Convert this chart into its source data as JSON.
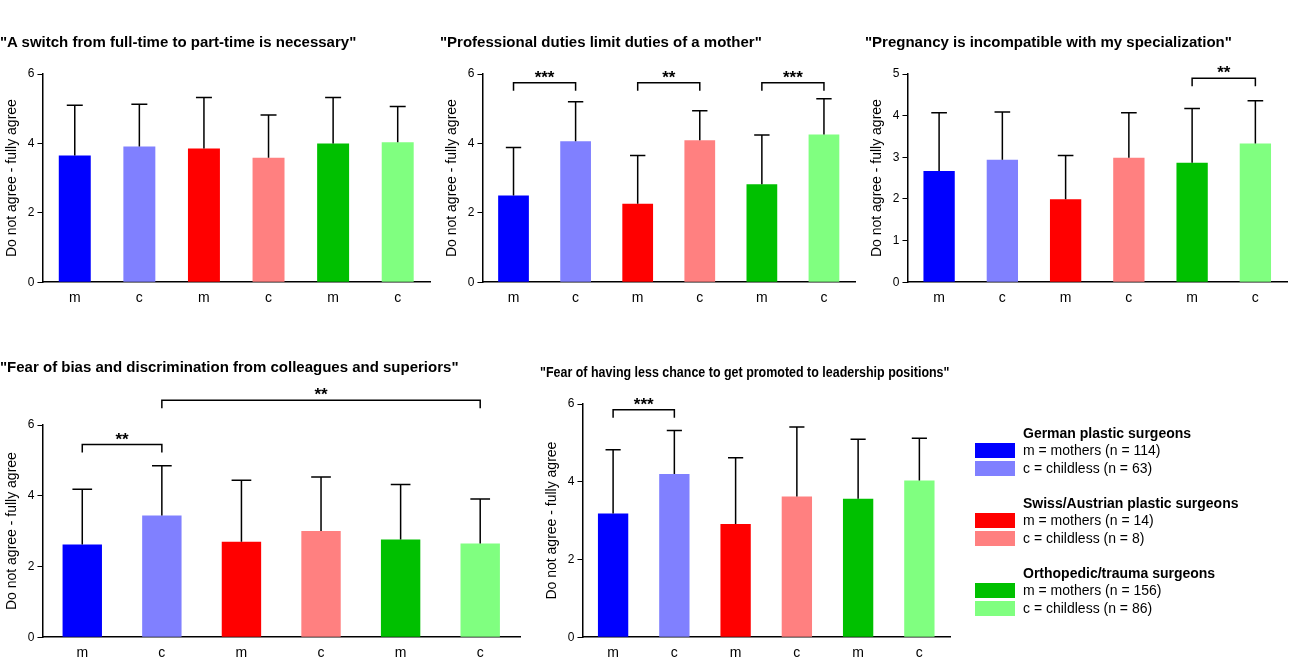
{
  "chart_data": [
    {
      "type": "bar",
      "title": "\"A switch from full-time to part-time is necessary\"",
      "ylabel": "Do not agree - fully agree",
      "categories": [
        "m",
        "c",
        "m",
        "c",
        "m",
        "c"
      ],
      "values": [
        3.65,
        3.91,
        3.85,
        3.59,
        4.0,
        4.03
      ],
      "colors": [
        "#0000ff",
        "#8080ff",
        "#ff0000",
        "#ff8080",
        "#00c000",
        "#80ff80"
      ],
      "errors": [
        [
          3.65,
          5.1
        ],
        [
          3.91,
          5.13
        ],
        [
          3.85,
          5.32
        ],
        [
          3.59,
          4.82
        ],
        [
          4.0,
          5.32
        ],
        [
          4.03,
          5.06
        ]
      ],
      "ylim": [
        0,
        6
      ],
      "yticks": [
        0,
        2,
        4,
        6
      ],
      "legend": false,
      "grid": false
    },
    {
      "type": "bar",
      "title": "\"Professional duties limit duties of a mother\"",
      "ylabel": "Do not agree - fully agree",
      "categories": [
        "m",
        "c",
        "m",
        "c",
        "m",
        "c"
      ],
      "values": [
        2.5,
        4.06,
        2.26,
        4.09,
        2.82,
        4.26
      ],
      "colors": [
        "#0000ff",
        "#8080ff",
        "#ff0000",
        "#ff8080",
        "#00c000",
        "#80ff80"
      ],
      "errors": [
        [
          2.5,
          3.88
        ],
        [
          4.06,
          5.2
        ],
        [
          2.26,
          3.65
        ],
        [
          4.09,
          4.94
        ],
        [
          2.82,
          4.24
        ],
        [
          4.26,
          5.29
        ]
      ],
      "ylim": [
        0,
        6
      ],
      "yticks": [
        0,
        2,
        4,
        6
      ],
      "legend": false,
      "grid": false,
      "annotations": [
        "***",
        "**",
        "***"
      ]
    },
    {
      "type": "bar",
      "title": "\"Pregnancy is incompatible with my specialization\"",
      "ylabel": "Do not agree - fully agree",
      "categories": [
        "m",
        "c",
        "m",
        "c",
        "m",
        "c"
      ],
      "values": [
        2.67,
        2.94,
        1.99,
        2.99,
        2.87,
        3.33
      ],
      "colors": [
        "#0000ff",
        "#8080ff",
        "#ff0000",
        "#ff8080",
        "#00c000",
        "#80ff80"
      ],
      "errors": [
        [
          2.67,
          4.07
        ],
        [
          2.94,
          4.09
        ],
        [
          1.99,
          3.04
        ],
        [
          2.99,
          4.07
        ],
        [
          2.87,
          4.17
        ],
        [
          3.33,
          4.36
        ]
      ],
      "ylim": [
        0,
        5
      ],
      "yticks": [
        0,
        1,
        2,
        3,
        4,
        5
      ],
      "legend": false,
      "grid": false,
      "annotations": [
        "**"
      ]
    },
    {
      "type": "bar",
      "title": "\"Fear of bias and discrimination from colleagues and superiors\"",
      "ylabel": "Do not agree - fully agree",
      "categories": [
        "m",
        "c",
        "m",
        "c",
        "m",
        "c"
      ],
      "values": [
        2.62,
        3.44,
        2.7,
        3.0,
        2.76,
        2.65
      ],
      "colors": [
        "#0000ff",
        "#8080ff",
        "#ff0000",
        "#ff8080",
        "#00c000",
        "#80ff80"
      ],
      "errors": [
        [
          2.62,
          4.18
        ],
        [
          3.44,
          4.85
        ],
        [
          2.7,
          4.44
        ],
        [
          3.0,
          4.53
        ],
        [
          2.76,
          4.32
        ],
        [
          2.65,
          3.91
        ]
      ],
      "ylim": [
        0,
        6
      ],
      "yticks": [
        0,
        2,
        4,
        6
      ],
      "legend": false,
      "grid": false,
      "annotations": [
        "**",
        "**"
      ]
    },
    {
      "type": "bar",
      "title": "\"Fear of having less chance to get promoted to leadership positions\"",
      "ylabel": "Do not agree - fully agree",
      "categories": [
        "m",
        "c",
        "m",
        "c",
        "m",
        "c"
      ],
      "values": [
        3.18,
        4.2,
        2.91,
        3.62,
        3.56,
        4.03
      ],
      "colors": [
        "#0000ff",
        "#8080ff",
        "#ff0000",
        "#ff8080",
        "#00c000",
        "#80ff80"
      ],
      "errors": [
        [
          3.18,
          4.82
        ],
        [
          4.2,
          5.32
        ],
        [
          2.91,
          4.62
        ],
        [
          3.62,
          5.41
        ],
        [
          3.56,
          5.09
        ],
        [
          4.03,
          5.12
        ]
      ],
      "ylim": [
        0,
        6
      ],
      "yticks": [
        0,
        2,
        4,
        6
      ],
      "legend": false,
      "grid": false,
      "annotations": [
        "***"
      ]
    },
    {
      "type": "other",
      "annotations": [
        "German plastic surgeons",
        "Swiss/Austrian plastic surgeons",
        "Orthopedic/trauma surgeons"
      ],
      "categories": [
        "m = mothers (n = 114)",
        "c = childless (n = 63)",
        "m = mothers (n = 14)",
        "c = childless (n = 8)",
        "m = mothers (n = 156)",
        "c = childless (n = 86)"
      ],
      "colors": [
        "#0000ff",
        "#8080ff",
        "#ff0000",
        "#ff8080",
        "#00c000",
        "#80ff80"
      ]
    }
  ]
}
